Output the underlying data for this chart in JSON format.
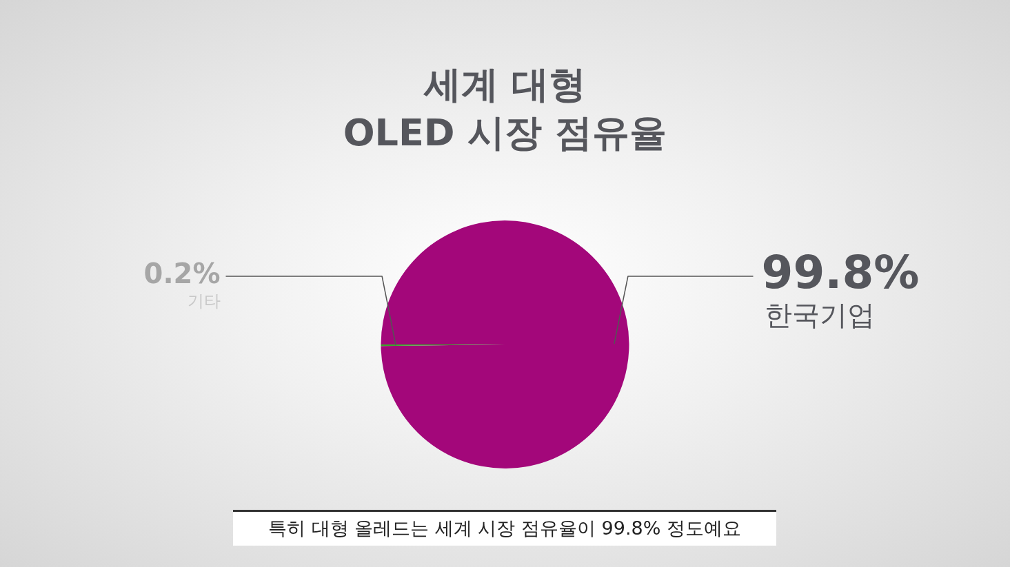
{
  "chart_data": {
    "type": "pie",
    "title": "세계 대형\nOLED 시장 점유율",
    "categories": [
      "한국기업",
      "기타"
    ],
    "values": [
      99.8,
      0.2
    ],
    "colors": [
      "#a3077a",
      "#3aa829"
    ],
    "value_labels": [
      "99.8%",
      "0.2%"
    ],
    "annotations": [
      "특히 대형 올레드는 세계 시장 점유율이 99.8% 정도예요"
    ]
  }
}
